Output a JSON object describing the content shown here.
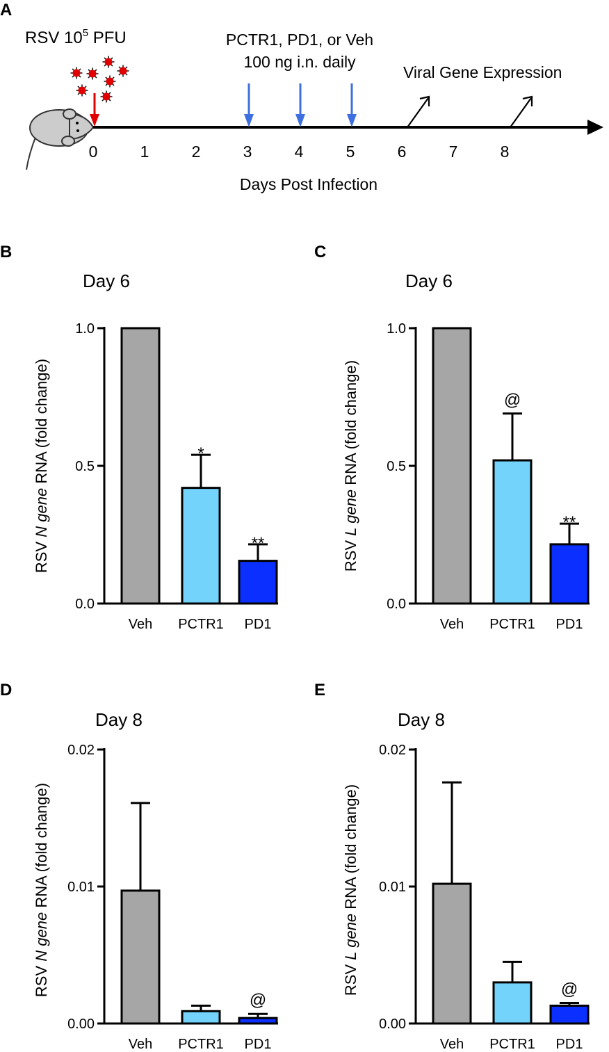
{
  "timeline": {
    "panel_label": "A",
    "virus_text_main": "RSV 10",
    "virus_text_sup": "5",
    "virus_text_unit": " PFU",
    "treatment_line1": "PCTR1, PD1, or Veh",
    "treatment_line2": "100 ng i.n. daily",
    "outcome_label": "Viral Gene Expression",
    "axis_label": "Days Post Infection",
    "days": [
      "0",
      "1",
      "2",
      "3",
      "4",
      "5",
      "6",
      "7",
      "8"
    ],
    "dose_days": [
      3,
      4,
      5
    ],
    "measure_days": [
      6,
      8
    ],
    "infection_day": 0,
    "colors": {
      "treatment": "#1a1aff",
      "dose_arrow": "#3d6fe0",
      "infection_arrow": "#e00000",
      "virus": "#e00000",
      "mouse": "#cccccc"
    }
  },
  "chart_data": [
    {
      "panel_label": "B",
      "type": "bar",
      "title": "Day 6",
      "ylabel_prefix": "RSV ",
      "ylabel_gene": "N gene",
      "ylabel_suffix": " RNA (fold change)",
      "categories": [
        "Veh",
        "PCTR1",
        "PD1"
      ],
      "values": [
        1.0,
        0.42,
        0.155
      ],
      "errors": [
        0.0,
        0.12,
        0.06
      ],
      "significance": [
        "",
        "*",
        "**"
      ],
      "ylim": [
        0,
        1.0
      ],
      "yticks": [
        0,
        0.5,
        1.0
      ],
      "ytick_labels": [
        "0.0",
        "0.5",
        "1.0"
      ],
      "colors": [
        "#a6a6a6",
        "#74d3fb",
        "#0a2fff"
      ]
    },
    {
      "panel_label": "C",
      "type": "bar",
      "title": "Day 6",
      "ylabel_prefix": "RSV ",
      "ylabel_gene": "L gene",
      "ylabel_suffix": " RNA (fold change)",
      "categories": [
        "Veh",
        "PCTR1",
        "PD1"
      ],
      "values": [
        1.0,
        0.52,
        0.215
      ],
      "errors": [
        0.0,
        0.17,
        0.075
      ],
      "significance": [
        "",
        "@",
        "**"
      ],
      "ylim": [
        0,
        1.0
      ],
      "yticks": [
        0,
        0.5,
        1.0
      ],
      "ytick_labels": [
        "0.0",
        "0.5",
        "1.0"
      ],
      "colors": [
        "#a6a6a6",
        "#74d3fb",
        "#0a2fff"
      ]
    },
    {
      "panel_label": "D",
      "type": "bar",
      "title": "Day 8",
      "ylabel_prefix": "RSV ",
      "ylabel_gene": "N gene",
      "ylabel_suffix": " RNA (fold change)",
      "categories": [
        "Veh",
        "PCTR1",
        "PD1"
      ],
      "values": [
        0.0097,
        0.0009,
        0.0004
      ],
      "errors": [
        0.0064,
        0.0004,
        0.0003
      ],
      "significance": [
        "",
        "",
        "@"
      ],
      "ylim": [
        0,
        0.02
      ],
      "yticks": [
        0,
        0.01,
        0.02
      ],
      "ytick_labels": [
        "0.00",
        "0.01",
        "0.02"
      ],
      "colors": [
        "#a6a6a6",
        "#74d3fb",
        "#0a2fff"
      ]
    },
    {
      "panel_label": "E",
      "type": "bar",
      "title": "Day 8",
      "ylabel_prefix": "RSV ",
      "ylabel_gene": "L gene",
      "ylabel_suffix": " RNA (fold change)",
      "categories": [
        "Veh",
        "PCTR1",
        "PD1"
      ],
      "values": [
        0.0102,
        0.003,
        0.0013
      ],
      "errors": [
        0.0074,
        0.0015,
        0.0002
      ],
      "significance": [
        "",
        "",
        "@"
      ],
      "ylim": [
        0,
        0.02
      ],
      "yticks": [
        0,
        0.01,
        0.02
      ],
      "ytick_labels": [
        "0.00",
        "0.01",
        "0.02"
      ],
      "colors": [
        "#a6a6a6",
        "#74d3fb",
        "#0a2fff"
      ]
    }
  ]
}
